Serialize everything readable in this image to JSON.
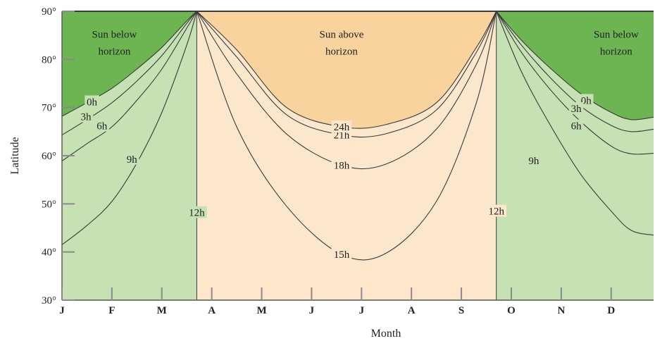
{
  "chart_data": {
    "type": "area",
    "xlabel": "Month",
    "ylabel": "Latitude",
    "x_ticks": [
      "J",
      "F",
      "M",
      "A",
      "M",
      "J",
      "J",
      "A",
      "S",
      "O",
      "N",
      "D"
    ],
    "y_ticks": [
      "30°",
      "40°",
      "50°",
      "60°",
      "70°",
      "80°",
      "90°"
    ],
    "ylim": [
      30,
      90
    ],
    "xlim": [
      0,
      11.85
    ],
    "colors": {
      "sun_below": "#6cb552",
      "winter_light": "#c6e1b4",
      "summer_light": "#fde7cc",
      "sun_above": "#f8d39d",
      "line": "#3a3a3a",
      "tick": "#8a8a8a"
    },
    "regions": [
      {
        "label": "Sun below horizon",
        "x": 1.05,
        "y": 84.5
      },
      {
        "label": "Sun above horizon",
        "x": 5.6,
        "y": 84.5
      },
      {
        "label": "Sun below horizon",
        "x": 11.1,
        "y": 84.5
      }
    ],
    "equinox_lines": [
      {
        "label": "12h",
        "x": 2.7,
        "label_y": 48.2
      },
      {
        "label": "12h",
        "x": 8.7,
        "label_y": 48.5
      }
    ],
    "series": [
      {
        "name": "0h",
        "x": [
          0,
          0.5,
          1.0,
          1.5,
          2.0,
          2.5,
          2.7
        ],
        "y": [
          68.2,
          71.0,
          74.0,
          78.0,
          82.5,
          88.0,
          90
        ],
        "label_x": 0.6,
        "label_y": 71.2
      },
      {
        "name": "3h",
        "x": [
          0,
          0.5,
          1.0,
          1.5,
          2.0,
          2.5,
          2.7
        ],
        "y": [
          64.3,
          67.5,
          71.0,
          75.5,
          80.8,
          87.5,
          90
        ],
        "label_x": 0.48,
        "label_y": 68.1
      },
      {
        "name": "6h",
        "x": [
          0,
          0.5,
          1.0,
          1.5,
          2.0,
          2.5,
          2.7
        ],
        "y": [
          58.9,
          62.5,
          66.0,
          71.5,
          78.0,
          86.5,
          90
        ],
        "label_x": 0.8,
        "label_y": 66.2
      },
      {
        "name": "9h",
        "x": [
          0,
          0.5,
          1.0,
          1.5,
          2.0,
          2.5,
          2.7
        ],
        "y": [
          41.5,
          45.5,
          50.5,
          58.5,
          69.0,
          83.0,
          90
        ],
        "label_x": 1.4,
        "label_y": 59.3
      },
      {
        "name": "15h",
        "x": [
          2.7,
          3.5,
          4.5,
          5.6,
          6.5,
          7.5,
          8.3,
          8.7
        ],
        "y": [
          90,
          66.0,
          49.5,
          39.5,
          39.8,
          50.5,
          71.0,
          90
        ],
        "label_x": 5.6,
        "label_y": 39.5
      },
      {
        "name": "18h",
        "x": [
          2.7,
          3.5,
          4.5,
          5.6,
          6.5,
          7.5,
          8.3,
          8.7
        ],
        "y": [
          90,
          77.0,
          64.5,
          58.0,
          58.3,
          65.5,
          79.0,
          90
        ],
        "label_x": 5.6,
        "label_y": 58.0
      },
      {
        "name": "21h",
        "x": [
          2.7,
          3.5,
          4.5,
          5.6,
          6.5,
          7.5,
          8.3,
          8.7
        ],
        "y": [
          90,
          80.5,
          68.5,
          64.3,
          64.6,
          69.5,
          81.5,
          90
        ],
        "label_x": 5.6,
        "label_y": 64.3
      },
      {
        "name": "24h",
        "x": [
          2.7,
          3.5,
          4.5,
          5.6,
          6.5,
          7.5,
          8.3,
          8.7
        ],
        "y": [
          90,
          82.0,
          70.0,
          66.0,
          66.5,
          71.0,
          82.5,
          90
        ],
        "label_x": 5.6,
        "label_y": 66.0
      },
      {
        "name": "0h",
        "x": [
          8.7,
          9.2,
          9.8,
          10.4,
          11.0,
          11.4,
          11.85
        ],
        "y": [
          90,
          84.0,
          78.0,
          72.8,
          69.0,
          67.5,
          68.0
        ],
        "label_x": 10.5,
        "label_y": 71.5
      },
      {
        "name": "3h",
        "x": [
          8.7,
          9.2,
          9.8,
          10.4,
          11.0,
          11.4,
          11.85
        ],
        "y": [
          90,
          83.0,
          76.0,
          70.2,
          66.3,
          65.0,
          65.5
        ],
        "label_x": 10.3,
        "label_y": 69.8
      },
      {
        "name": "6h",
        "x": [
          8.7,
          9.2,
          9.8,
          10.4,
          11.0,
          11.4,
          11.85
        ],
        "y": [
          90,
          81.5,
          73.5,
          67.0,
          62.0,
          60.4,
          60.5
        ],
        "label_x": 10.3,
        "label_y": 66.2
      },
      {
        "name": "9h",
        "x": [
          8.7,
          9.2,
          9.8,
          10.4,
          11.0,
          11.4,
          11.85
        ],
        "y": [
          90,
          77.5,
          66.0,
          56.0,
          48.5,
          44.5,
          43.5
        ],
        "label_x": 9.45,
        "label_y": 59.0
      }
    ]
  }
}
